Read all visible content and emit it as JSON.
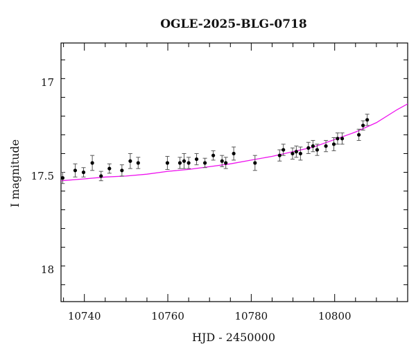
{
  "chart_data": {
    "type": "scatter",
    "title": "OGLE-2025-BLG-0718",
    "xlabel": "HJD - 2450000",
    "ylabel": "I magnitude",
    "xlim": [
      10734.4,
      10817.5
    ],
    "ylim": [
      18.17,
      16.79
    ],
    "y_inverted": true,
    "x_ticks": [
      10740,
      10760,
      10780,
      10800
    ],
    "x_tick_labels": [
      "10740",
      "10760",
      "10780",
      "10800"
    ],
    "y_ticks": [
      17.0,
      17.5,
      18.0
    ],
    "y_tick_labels": [
      "17",
      "17.5",
      "18"
    ],
    "points": [
      {
        "x": 10734.8,
        "y": 17.51,
        "err": 0.03
      },
      {
        "x": 10737.8,
        "y": 17.47,
        "err": 0.035
      },
      {
        "x": 10739.8,
        "y": 17.48,
        "err": 0.025
      },
      {
        "x": 10741.9,
        "y": 17.43,
        "err": 0.04
      },
      {
        "x": 10744.0,
        "y": 17.5,
        "err": 0.025
      },
      {
        "x": 10746.0,
        "y": 17.46,
        "err": 0.025
      },
      {
        "x": 10749.0,
        "y": 17.47,
        "err": 0.03
      },
      {
        "x": 10751.0,
        "y": 17.42,
        "err": 0.04
      },
      {
        "x": 10752.9,
        "y": 17.43,
        "err": 0.03
      },
      {
        "x": 10759.9,
        "y": 17.43,
        "err": 0.035
      },
      {
        "x": 10762.9,
        "y": 17.43,
        "err": 0.03
      },
      {
        "x": 10763.9,
        "y": 17.42,
        "err": 0.04
      },
      {
        "x": 10765.0,
        "y": 17.43,
        "err": 0.03
      },
      {
        "x": 10766.9,
        "y": 17.41,
        "err": 0.03
      },
      {
        "x": 10768.9,
        "y": 17.43,
        "err": 0.025
      },
      {
        "x": 10770.9,
        "y": 17.39,
        "err": 0.025
      },
      {
        "x": 10773.0,
        "y": 17.42,
        "err": 0.03
      },
      {
        "x": 10773.9,
        "y": 17.43,
        "err": 0.03
      },
      {
        "x": 10775.8,
        "y": 17.38,
        "err": 0.035
      },
      {
        "x": 10780.9,
        "y": 17.43,
        "err": 0.04
      },
      {
        "x": 10786.8,
        "y": 17.39,
        "err": 0.03
      },
      {
        "x": 10787.7,
        "y": 17.36,
        "err": 0.03
      },
      {
        "x": 10789.9,
        "y": 17.38,
        "err": 0.03
      },
      {
        "x": 10790.8,
        "y": 17.37,
        "err": 0.03
      },
      {
        "x": 10791.8,
        "y": 17.38,
        "err": 0.035
      },
      {
        "x": 10793.7,
        "y": 17.35,
        "err": 0.03
      },
      {
        "x": 10794.8,
        "y": 17.34,
        "err": 0.03
      },
      {
        "x": 10795.8,
        "y": 17.36,
        "err": 0.03
      },
      {
        "x": 10797.9,
        "y": 17.34,
        "err": 0.03
      },
      {
        "x": 10799.8,
        "y": 17.33,
        "err": 0.035
      },
      {
        "x": 10800.7,
        "y": 17.3,
        "err": 0.03
      },
      {
        "x": 10801.8,
        "y": 17.3,
        "err": 0.03
      },
      {
        "x": 10805.8,
        "y": 17.28,
        "err": 0.03
      },
      {
        "x": 10806.8,
        "y": 17.23,
        "err": 0.025
      },
      {
        "x": 10807.8,
        "y": 17.2,
        "err": 0.03
      }
    ],
    "model_curve": {
      "color": "#ee11ee",
      "x": [
        10734.4,
        10740,
        10745,
        10750,
        10755,
        10760,
        10765,
        10770,
        10775,
        10780,
        10785,
        10790,
        10795,
        10800,
        10805,
        10810,
        10815,
        10817.5
      ],
      "y": [
        17.525,
        17.515,
        17.505,
        17.5,
        17.49,
        17.475,
        17.465,
        17.45,
        17.435,
        17.415,
        17.395,
        17.37,
        17.345,
        17.305,
        17.265,
        17.215,
        17.145,
        17.115
      ]
    },
    "colors": {
      "points": "#000000",
      "error_bars": "#555555",
      "axes": "#000000"
    },
    "grid": false,
    "legend": "none"
  }
}
